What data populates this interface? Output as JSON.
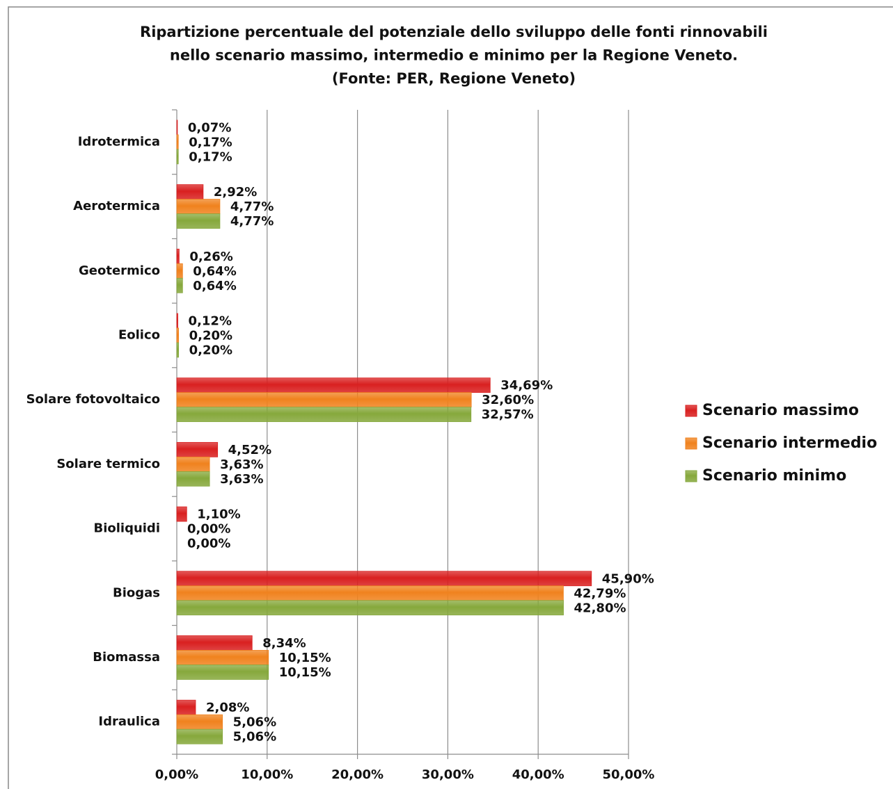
{
  "chart_data": {
    "type": "bar",
    "orientation": "horizontal",
    "title": [
      "Ripartizione percentuale del potenziale dello sviluppo delle fonti rinnovabili",
      "nello scenario massimo, intermedio e minimo per la Regione Veneto.",
      "(Fonte: PER, Regione Veneto)"
    ],
    "categories": [
      "Idrotermica",
      "Aerotermica",
      "Geotermico",
      "Eolico",
      "Solare fotovoltaico",
      "Solare termico",
      "Bioliquidi",
      "Biogas",
      "Biomassa",
      "Idraulica"
    ],
    "series": [
      {
        "name": "Scenario massimo",
        "color": "#d92020",
        "values": [
          0.07,
          2.92,
          0.26,
          0.12,
          34.69,
          4.52,
          1.1,
          45.9,
          8.34,
          2.08
        ],
        "value_labels": [
          "0,07%",
          "2,92%",
          "0,26%",
          "0,12%",
          "34,69%",
          "4,52%",
          "1,10%",
          "45,90%",
          "8,34%",
          "2,08%"
        ]
      },
      {
        "name": "Scenario intermedio",
        "color": "#f0821e",
        "values": [
          0.17,
          4.77,
          0.64,
          0.2,
          32.6,
          3.63,
          0.0,
          42.79,
          10.15,
          5.06
        ],
        "value_labels": [
          "0,17%",
          "4,77%",
          "0,64%",
          "0,20%",
          "32,60%",
          "3,63%",
          "0,00%",
          "42,79%",
          "10,15%",
          "5,06%"
        ]
      },
      {
        "name": "Scenario minimo",
        "color": "#86a83c",
        "values": [
          0.17,
          4.77,
          0.64,
          0.2,
          32.57,
          3.63,
          0.0,
          42.8,
          10.15,
          5.06
        ],
        "value_labels": [
          "0,17%",
          "4,77%",
          "0,64%",
          "0,20%",
          "32,57%",
          "3,63%",
          "0,00%",
          "42,80%",
          "10,15%",
          "5,06%"
        ]
      }
    ],
    "xlim": [
      0,
      50
    ],
    "xticks": [
      {
        "value": 0,
        "label": "0,00%"
      },
      {
        "value": 10,
        "label": "10,00%"
      },
      {
        "value": 20,
        "label": "20,00%"
      },
      {
        "value": 30,
        "label": "30,00%"
      },
      {
        "value": 40,
        "label": "40,00%"
      },
      {
        "value": 50,
        "label": "50,00%"
      }
    ],
    "grid": true,
    "legend": "right"
  }
}
